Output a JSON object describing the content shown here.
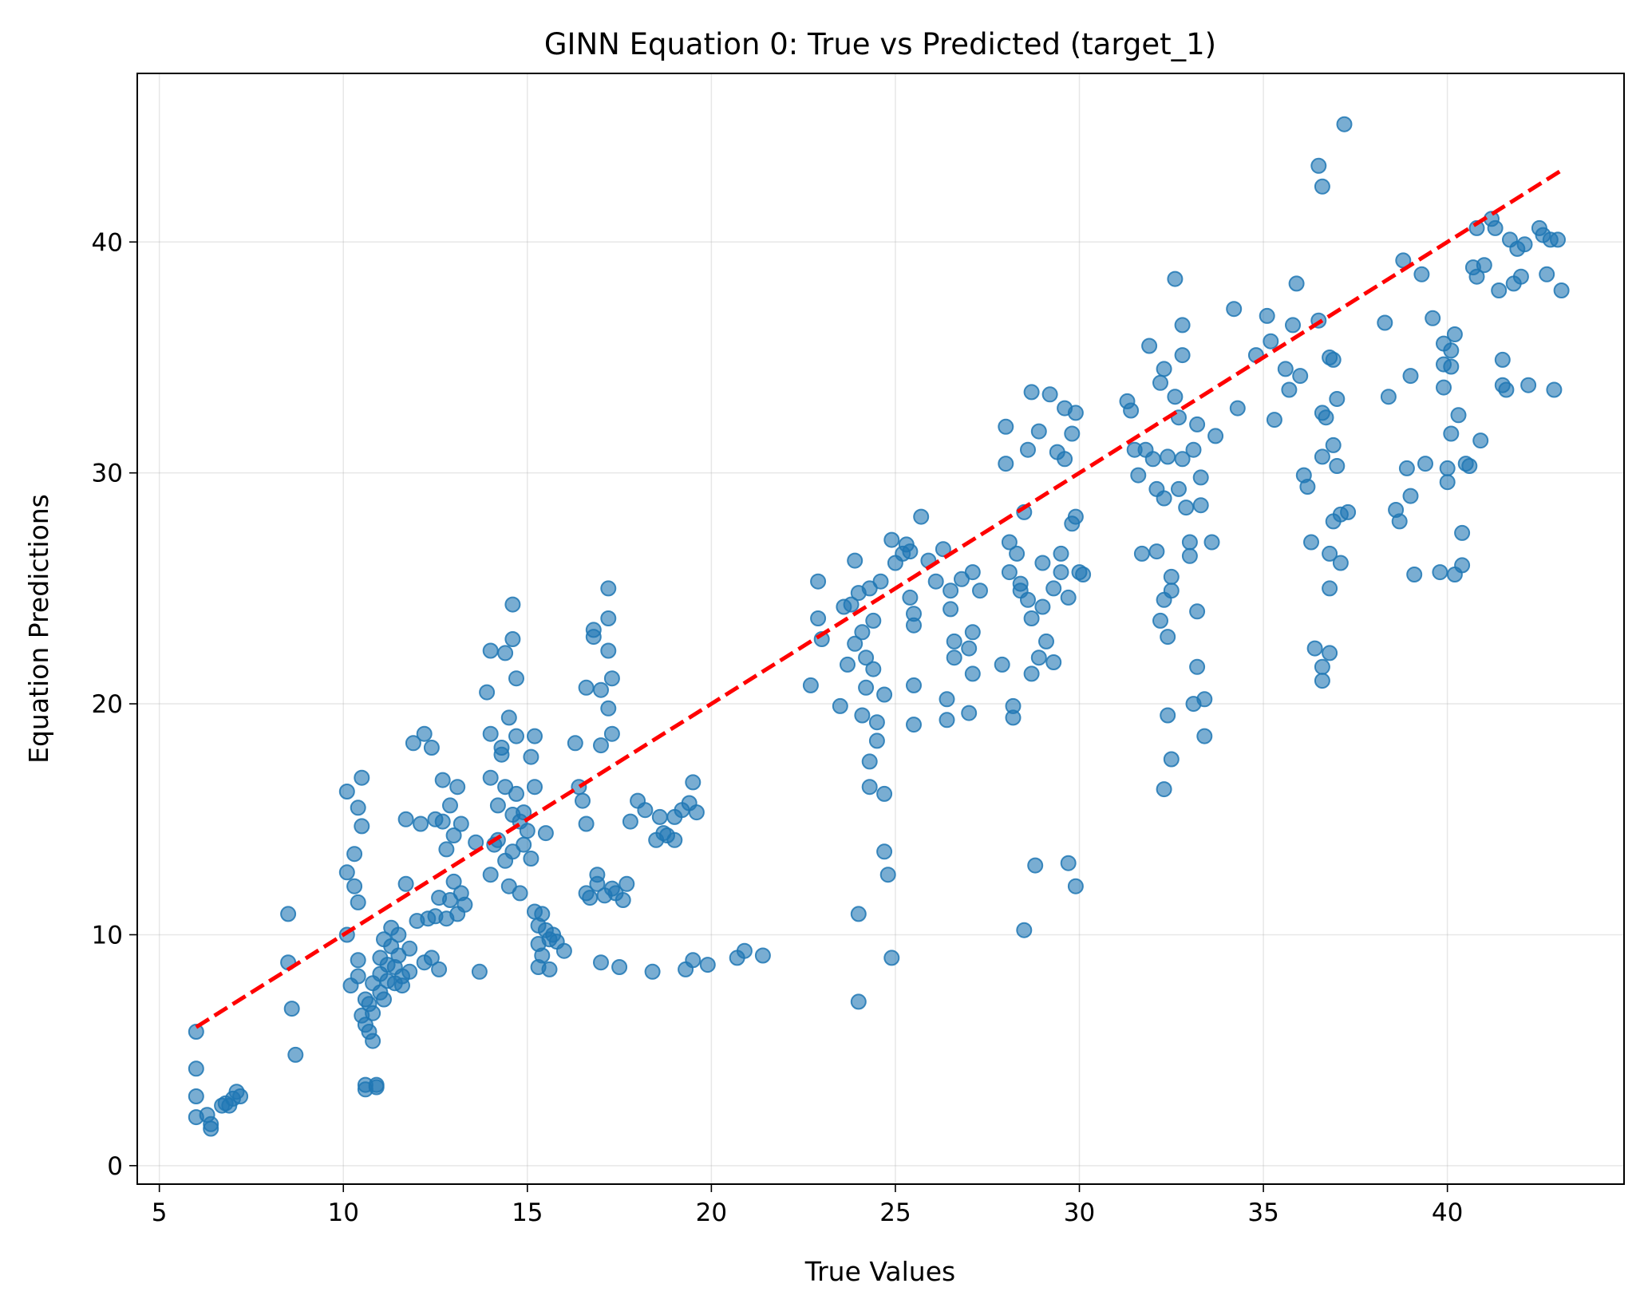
{
  "chart_data": {
    "type": "scatter",
    "title": "GINN Equation 0: True vs Predicted (target_1)",
    "xlabel": "True Values",
    "ylabel": "Equation Predictions",
    "xlim": [
      4.4,
      44.8
    ],
    "ylim": [
      -0.8,
      47.3
    ],
    "xticks": [
      5,
      10,
      15,
      20,
      25,
      30,
      35,
      40
    ],
    "yticks": [
      0,
      10,
      20,
      30,
      40
    ],
    "grid": true,
    "point_color": "#1f77b4",
    "point_alpha": 0.6,
    "reference_line": {
      "style": "dashed",
      "color": "#ff0000",
      "points": [
        [
          6.0,
          6.0
        ],
        [
          43.1,
          43.1
        ]
      ]
    },
    "points": [
      [
        6.0,
        5.8
      ],
      [
        6.0,
        4.2
      ],
      [
        6.0,
        3.0
      ],
      [
        6.0,
        2.1
      ],
      [
        6.3,
        2.2
      ],
      [
        6.4,
        1.6
      ],
      [
        6.4,
        1.8
      ],
      [
        6.7,
        2.6
      ],
      [
        6.8,
        2.7
      ],
      [
        6.9,
        2.6
      ],
      [
        7.0,
        2.9
      ],
      [
        7.1,
        3.2
      ],
      [
        7.2,
        3.0
      ],
      [
        8.5,
        10.9
      ],
      [
        8.5,
        8.8
      ],
      [
        8.6,
        6.8
      ],
      [
        8.7,
        4.8
      ],
      [
        10.1,
        16.2
      ],
      [
        10.1,
        12.7
      ],
      [
        10.1,
        10.0
      ],
      [
        10.2,
        7.8
      ],
      [
        10.3,
        13.5
      ],
      [
        10.3,
        12.1
      ],
      [
        10.4,
        11.4
      ],
      [
        10.4,
        8.9
      ],
      [
        10.4,
        8.2
      ],
      [
        10.4,
        15.5
      ],
      [
        10.5,
        14.7
      ],
      [
        10.5,
        16.8
      ],
      [
        10.5,
        6.5
      ],
      [
        10.6,
        6.1
      ],
      [
        10.6,
        7.2
      ],
      [
        10.6,
        3.5
      ],
      [
        10.6,
        3.3
      ],
      [
        10.7,
        7.0
      ],
      [
        10.7,
        5.8
      ],
      [
        10.8,
        6.6
      ],
      [
        10.8,
        7.9
      ],
      [
        10.8,
        5.4
      ],
      [
        10.9,
        3.4
      ],
      [
        10.9,
        3.5
      ],
      [
        11.0,
        7.5
      ],
      [
        11.0,
        8.3
      ],
      [
        11.0,
        9.0
      ],
      [
        11.1,
        7.2
      ],
      [
        11.1,
        9.8
      ],
      [
        11.2,
        8.0
      ],
      [
        11.2,
        8.7
      ],
      [
        11.3,
        9.5
      ],
      [
        11.3,
        10.3
      ],
      [
        11.4,
        7.9
      ],
      [
        11.4,
        8.6
      ],
      [
        11.5,
        9.1
      ],
      [
        11.5,
        10.0
      ],
      [
        11.6,
        8.2
      ],
      [
        11.6,
        7.8
      ],
      [
        11.7,
        12.2
      ],
      [
        11.7,
        15.0
      ],
      [
        11.8,
        9.4
      ],
      [
        11.8,
        8.4
      ],
      [
        11.9,
        18.3
      ],
      [
        12.0,
        10.6
      ],
      [
        12.1,
        14.8
      ],
      [
        12.2,
        18.7
      ],
      [
        12.2,
        8.8
      ],
      [
        12.3,
        10.7
      ],
      [
        12.4,
        18.1
      ],
      [
        12.4,
        9.0
      ],
      [
        12.5,
        15.0
      ],
      [
        12.5,
        10.8
      ],
      [
        12.6,
        8.5
      ],
      [
        12.6,
        11.6
      ],
      [
        12.7,
        16.7
      ],
      [
        12.7,
        14.9
      ],
      [
        12.8,
        10.7
      ],
      [
        12.8,
        13.7
      ],
      [
        12.9,
        15.6
      ],
      [
        12.9,
        11.5
      ],
      [
        13.0,
        12.3
      ],
      [
        13.0,
        14.3
      ],
      [
        13.1,
        10.9
      ],
      [
        13.1,
        16.4
      ],
      [
        13.2,
        11.8
      ],
      [
        13.2,
        14.8
      ],
      [
        13.3,
        11.3
      ],
      [
        13.6,
        14.0
      ],
      [
        13.7,
        8.4
      ],
      [
        13.9,
        20.5
      ],
      [
        14.0,
        22.3
      ],
      [
        14.0,
        18.7
      ],
      [
        14.0,
        16.8
      ],
      [
        14.0,
        12.6
      ],
      [
        14.1,
        13.9
      ],
      [
        14.2,
        15.6
      ],
      [
        14.2,
        14.1
      ],
      [
        14.3,
        18.1
      ],
      [
        14.3,
        17.8
      ],
      [
        14.4,
        22.2
      ],
      [
        14.4,
        16.4
      ],
      [
        14.4,
        13.2
      ],
      [
        14.5,
        19.4
      ],
      [
        14.5,
        12.1
      ],
      [
        14.6,
        24.3
      ],
      [
        14.6,
        22.8
      ],
      [
        14.6,
        15.2
      ],
      [
        14.6,
        13.6
      ],
      [
        14.7,
        18.6
      ],
      [
        14.7,
        16.1
      ],
      [
        14.7,
        21.1
      ],
      [
        14.8,
        14.9
      ],
      [
        14.8,
        11.8
      ],
      [
        14.9,
        15.3
      ],
      [
        14.9,
        13.9
      ],
      [
        15.0,
        14.5
      ],
      [
        15.1,
        17.7
      ],
      [
        15.1,
        13.3
      ],
      [
        15.2,
        18.6
      ],
      [
        15.2,
        16.4
      ],
      [
        15.2,
        11.0
      ],
      [
        15.3,
        10.4
      ],
      [
        15.3,
        9.6
      ],
      [
        15.3,
        8.6
      ],
      [
        15.4,
        10.9
      ],
      [
        15.4,
        9.1
      ],
      [
        15.5,
        10.2
      ],
      [
        15.5,
        14.4
      ],
      [
        15.6,
        9.8
      ],
      [
        15.6,
        8.5
      ],
      [
        15.7,
        10.0
      ],
      [
        15.8,
        9.7
      ],
      [
        16.0,
        9.3
      ],
      [
        16.3,
        18.3
      ],
      [
        16.4,
        16.4
      ],
      [
        16.5,
        15.8
      ],
      [
        16.6,
        14.8
      ],
      [
        16.6,
        20.7
      ],
      [
        16.6,
        11.8
      ],
      [
        16.7,
        11.6
      ],
      [
        16.8,
        23.2
      ],
      [
        16.8,
        22.9
      ],
      [
        16.9,
        12.6
      ],
      [
        16.9,
        12.2
      ],
      [
        17.0,
        18.2
      ],
      [
        17.0,
        20.6
      ],
      [
        17.0,
        8.8
      ],
      [
        17.1,
        11.7
      ],
      [
        17.2,
        25.0
      ],
      [
        17.2,
        23.7
      ],
      [
        17.2,
        22.3
      ],
      [
        17.2,
        19.8
      ],
      [
        17.3,
        21.1
      ],
      [
        17.3,
        18.7
      ],
      [
        17.3,
        12.0
      ],
      [
        17.4,
        11.8
      ],
      [
        17.5,
        8.6
      ],
      [
        17.6,
        11.5
      ],
      [
        17.7,
        12.2
      ],
      [
        17.8,
        14.9
      ],
      [
        18.0,
        15.8
      ],
      [
        18.2,
        15.4
      ],
      [
        18.4,
        8.4
      ],
      [
        18.5,
        14.1
      ],
      [
        18.6,
        15.1
      ],
      [
        18.7,
        14.4
      ],
      [
        18.8,
        14.3
      ],
      [
        19.0,
        15.1
      ],
      [
        19.0,
        14.1
      ],
      [
        19.2,
        15.4
      ],
      [
        19.3,
        8.5
      ],
      [
        19.4,
        15.7
      ],
      [
        19.5,
        8.9
      ],
      [
        19.5,
        16.6
      ],
      [
        19.6,
        15.3
      ],
      [
        19.9,
        8.7
      ],
      [
        20.7,
        9.0
      ],
      [
        20.9,
        9.3
      ],
      [
        21.4,
        9.1
      ],
      [
        22.7,
        20.8
      ],
      [
        22.9,
        25.3
      ],
      [
        22.9,
        23.7
      ],
      [
        23.0,
        22.8
      ],
      [
        23.5,
        19.9
      ],
      [
        23.6,
        24.2
      ],
      [
        23.7,
        21.7
      ],
      [
        23.8,
        24.3
      ],
      [
        23.9,
        26.2
      ],
      [
        23.9,
        22.6
      ],
      [
        24.0,
        24.8
      ],
      [
        24.0,
        10.9
      ],
      [
        24.0,
        7.1
      ],
      [
        24.1,
        23.1
      ],
      [
        24.1,
        19.5
      ],
      [
        24.2,
        22.0
      ],
      [
        24.2,
        20.7
      ],
      [
        24.3,
        25.0
      ],
      [
        24.3,
        17.5
      ],
      [
        24.3,
        16.4
      ],
      [
        24.4,
        23.6
      ],
      [
        24.4,
        21.5
      ],
      [
        24.5,
        19.2
      ],
      [
        24.5,
        18.4
      ],
      [
        24.6,
        25.3
      ],
      [
        24.7,
        20.4
      ],
      [
        24.7,
        16.1
      ],
      [
        24.7,
        13.6
      ],
      [
        24.8,
        12.6
      ],
      [
        24.9,
        9.0
      ],
      [
        24.9,
        27.1
      ],
      [
        25.0,
        26.1
      ],
      [
        25.2,
        26.5
      ],
      [
        25.3,
        26.9
      ],
      [
        25.4,
        26.6
      ],
      [
        25.4,
        24.6
      ],
      [
        25.5,
        23.9
      ],
      [
        25.5,
        23.4
      ],
      [
        25.5,
        20.8
      ],
      [
        25.5,
        19.1
      ],
      [
        25.7,
        28.1
      ],
      [
        25.9,
        26.2
      ],
      [
        26.1,
        25.3
      ],
      [
        26.3,
        26.7
      ],
      [
        26.4,
        20.2
      ],
      [
        26.4,
        19.3
      ],
      [
        26.5,
        24.9
      ],
      [
        26.5,
        24.1
      ],
      [
        26.6,
        22.7
      ],
      [
        26.6,
        22.0
      ],
      [
        26.8,
        25.4
      ],
      [
        27.0,
        22.4
      ],
      [
        27.0,
        19.6
      ],
      [
        27.1,
        25.7
      ],
      [
        27.1,
        23.1
      ],
      [
        27.1,
        21.3
      ],
      [
        27.3,
        24.9
      ],
      [
        27.9,
        21.7
      ],
      [
        28.0,
        32.0
      ],
      [
        28.0,
        30.4
      ],
      [
        28.1,
        27.0
      ],
      [
        28.1,
        25.7
      ],
      [
        28.2,
        19.9
      ],
      [
        28.2,
        19.4
      ],
      [
        28.3,
        26.5
      ],
      [
        28.4,
        25.2
      ],
      [
        28.4,
        24.9
      ],
      [
        28.5,
        28.3
      ],
      [
        28.5,
        10.2
      ],
      [
        28.6,
        31.0
      ],
      [
        28.6,
        24.5
      ],
      [
        28.7,
        33.5
      ],
      [
        28.7,
        23.7
      ],
      [
        28.7,
        21.3
      ],
      [
        28.8,
        13.0
      ],
      [
        28.9,
        31.8
      ],
      [
        28.9,
        22.0
      ],
      [
        29.0,
        26.1
      ],
      [
        29.0,
        24.2
      ],
      [
        29.1,
        22.7
      ],
      [
        29.2,
        33.4
      ],
      [
        29.3,
        25.0
      ],
      [
        29.3,
        21.8
      ],
      [
        29.4,
        30.9
      ],
      [
        29.5,
        26.5
      ],
      [
        29.5,
        25.7
      ],
      [
        29.6,
        32.8
      ],
      [
        29.6,
        30.6
      ],
      [
        29.7,
        13.1
      ],
      [
        29.7,
        24.6
      ],
      [
        29.8,
        31.7
      ],
      [
        29.8,
        27.8
      ],
      [
        29.9,
        32.6
      ],
      [
        29.9,
        28.1
      ],
      [
        29.9,
        12.1
      ],
      [
        30.0,
        25.7
      ],
      [
        30.1,
        25.6
      ],
      [
        31.3,
        33.1
      ],
      [
        31.4,
        32.7
      ],
      [
        31.5,
        31.0
      ],
      [
        31.6,
        29.9
      ],
      [
        31.7,
        26.5
      ],
      [
        31.8,
        31.0
      ],
      [
        31.9,
        35.5
      ],
      [
        32.0,
        30.6
      ],
      [
        32.1,
        29.3
      ],
      [
        32.1,
        26.6
      ],
      [
        32.2,
        33.9
      ],
      [
        32.2,
        23.6
      ],
      [
        32.3,
        34.5
      ],
      [
        32.3,
        28.9
      ],
      [
        32.3,
        24.5
      ],
      [
        32.3,
        16.3
      ],
      [
        32.4,
        30.7
      ],
      [
        32.4,
        22.9
      ],
      [
        32.4,
        19.5
      ],
      [
        32.5,
        25.5
      ],
      [
        32.5,
        24.9
      ],
      [
        32.5,
        17.6
      ],
      [
        32.6,
        38.4
      ],
      [
        32.6,
        33.3
      ],
      [
        32.7,
        32.4
      ],
      [
        32.7,
        29.3
      ],
      [
        32.8,
        36.4
      ],
      [
        32.8,
        35.1
      ],
      [
        32.8,
        30.6
      ],
      [
        32.9,
        28.5
      ],
      [
        33.0,
        27.0
      ],
      [
        33.0,
        26.4
      ],
      [
        33.1,
        31.0
      ],
      [
        33.1,
        20.0
      ],
      [
        33.2,
        32.1
      ],
      [
        33.2,
        24.0
      ],
      [
        33.2,
        21.6
      ],
      [
        33.3,
        29.8
      ],
      [
        33.3,
        28.6
      ],
      [
        33.4,
        20.2
      ],
      [
        33.4,
        18.6
      ],
      [
        33.6,
        27.0
      ],
      [
        33.7,
        31.6
      ],
      [
        34.2,
        37.1
      ],
      [
        34.3,
        32.8
      ],
      [
        34.8,
        35.1
      ],
      [
        35.1,
        36.8
      ],
      [
        35.2,
        35.7
      ],
      [
        35.3,
        32.3
      ],
      [
        35.6,
        34.5
      ],
      [
        35.7,
        33.6
      ],
      [
        35.8,
        36.4
      ],
      [
        35.9,
        38.2
      ],
      [
        36.0,
        34.2
      ],
      [
        36.1,
        29.9
      ],
      [
        36.2,
        29.4
      ],
      [
        36.3,
        27.0
      ],
      [
        36.4,
        22.4
      ],
      [
        36.5,
        43.3
      ],
      [
        36.5,
        36.6
      ],
      [
        36.6,
        42.4
      ],
      [
        36.6,
        32.6
      ],
      [
        36.6,
        30.7
      ],
      [
        36.6,
        21.0
      ],
      [
        36.6,
        21.6
      ],
      [
        36.7,
        32.4
      ],
      [
        36.8,
        35.0
      ],
      [
        36.8,
        26.5
      ],
      [
        36.8,
        22.2
      ],
      [
        36.8,
        25.0
      ],
      [
        36.9,
        34.9
      ],
      [
        36.9,
        31.2
      ],
      [
        36.9,
        27.9
      ],
      [
        37.0,
        30.3
      ],
      [
        37.0,
        33.2
      ],
      [
        37.1,
        28.2
      ],
      [
        37.1,
        26.1
      ],
      [
        37.2,
        45.1
      ],
      [
        37.3,
        28.3
      ],
      [
        38.3,
        36.5
      ],
      [
        38.4,
        33.3
      ],
      [
        38.6,
        28.4
      ],
      [
        38.7,
        27.9
      ],
      [
        38.8,
        39.2
      ],
      [
        38.9,
        30.2
      ],
      [
        39.0,
        34.2
      ],
      [
        39.0,
        29.0
      ],
      [
        39.1,
        25.6
      ],
      [
        39.3,
        38.6
      ],
      [
        39.4,
        30.4
      ],
      [
        39.6,
        36.7
      ],
      [
        39.8,
        25.7
      ],
      [
        39.9,
        35.6
      ],
      [
        39.9,
        34.7
      ],
      [
        39.9,
        33.7
      ],
      [
        40.0,
        30.2
      ],
      [
        40.0,
        29.6
      ],
      [
        40.1,
        35.3
      ],
      [
        40.1,
        34.6
      ],
      [
        40.1,
        31.7
      ],
      [
        40.2,
        36.0
      ],
      [
        40.2,
        25.6
      ],
      [
        40.3,
        32.5
      ],
      [
        40.4,
        27.4
      ],
      [
        40.4,
        26.0
      ],
      [
        40.5,
        30.4
      ],
      [
        40.6,
        30.3
      ],
      [
        40.7,
        38.9
      ],
      [
        40.8,
        40.6
      ],
      [
        40.8,
        38.5
      ],
      [
        40.9,
        31.4
      ],
      [
        41.0,
        39.0
      ],
      [
        41.2,
        41.0
      ],
      [
        41.3,
        40.6
      ],
      [
        41.4,
        37.9
      ],
      [
        41.5,
        34.9
      ],
      [
        41.6,
        33.6
      ],
      [
        41.7,
        40.1
      ],
      [
        41.8,
        38.2
      ],
      [
        41.9,
        39.7
      ],
      [
        42.0,
        38.5
      ],
      [
        42.1,
        39.9
      ],
      [
        42.2,
        33.8
      ],
      [
        42.5,
        40.6
      ],
      [
        42.6,
        40.3
      ],
      [
        42.7,
        38.6
      ],
      [
        42.8,
        40.1
      ],
      [
        42.9,
        33.6
      ],
      [
        43.0,
        40.1
      ],
      [
        43.1,
        37.9
      ],
      [
        41.5,
        33.8
      ]
    ]
  }
}
